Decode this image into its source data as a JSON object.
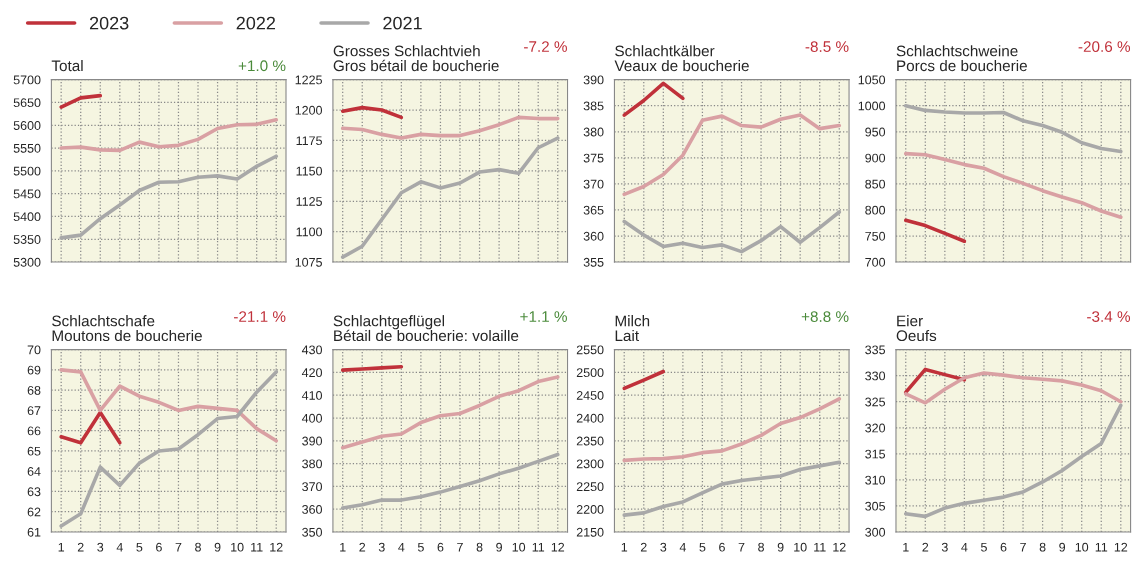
{
  "chart_data": [
    {
      "type": "line",
      "title": "Total",
      "annotations": [
        "+1.0 %"
      ],
      "categories": [
        "1",
        "2",
        "3",
        "4",
        "5",
        "6",
        "7",
        "8",
        "9",
        "10",
        "11",
        "12"
      ],
      "ylim": [
        5300,
        5700
      ],
      "yticks": [
        5300,
        5350,
        5400,
        5450,
        5500,
        5550,
        5600,
        5650,
        5700
      ],
      "tick_labels": "y",
      "grid": true,
      "legend": "top",
      "series": [
        {
          "name": "2023",
          "color": "#c0313a",
          "values": [
            5640,
            5660,
            5665,
            null,
            null,
            null,
            null,
            null,
            null,
            null,
            null,
            null
          ]
        },
        {
          "name": "2022",
          "color": "#d9a0a3",
          "values": [
            5550,
            5552,
            5546,
            5545,
            5563,
            5553,
            5556,
            5569,
            5593,
            5601,
            5602,
            5612
          ]
        },
        {
          "name": "2021",
          "color": "#a8a8a8",
          "values": [
            5353,
            5359,
            5395,
            5425,
            5457,
            5475,
            5476,
            5486,
            5489,
            5482,
            5510,
            5532
          ]
        }
      ]
    },
    {
      "type": "line",
      "title": "Grosses Schlachtvieh",
      "subtitle": "Gros bétail de boucherie",
      "annotations": [
        "-7.2 %"
      ],
      "categories": [
        "1",
        "2",
        "3",
        "4",
        "5",
        "6",
        "7",
        "8",
        "9",
        "10",
        "11",
        "12"
      ],
      "ylim": [
        1075,
        1225
      ],
      "yticks": [
        1075,
        1100,
        1125,
        1150,
        1175,
        1200,
        1225
      ],
      "tick_labels": "y",
      "grid": true,
      "series": [
        {
          "color": "#c0313a",
          "values": [
            1199,
            1202,
            1200,
            1194,
            null,
            null,
            null,
            null,
            null,
            null,
            null,
            null
          ]
        },
        {
          "color": "#d9a0a3",
          "values": [
            1185,
            1184,
            1180,
            1177,
            1180,
            1179,
            1179,
            1183,
            1188,
            1194,
            1193,
            1193
          ]
        },
        {
          "color": "#a8a8a8",
          "values": [
            1079,
            1088,
            1110,
            1132,
            1141,
            1136,
            1140,
            1149,
            1151,
            1148,
            1169,
            1177
          ]
        }
      ]
    },
    {
      "type": "line",
      "title": "Schlachtkälber",
      "subtitle": "Veaux de boucherie",
      "annotations": [
        "-8.5 %"
      ],
      "categories": [
        "1",
        "2",
        "3",
        "4",
        "5",
        "6",
        "7",
        "8",
        "9",
        "10",
        "11",
        "12"
      ],
      "ylim": [
        355,
        390
      ],
      "yticks": [
        355,
        360,
        365,
        370,
        375,
        380,
        385,
        390
      ],
      "tick_labels": "y",
      "grid": true,
      "series": [
        {
          "color": "#c0313a",
          "values": [
            383.2,
            386,
            389.3,
            386.4,
            null,
            null,
            null,
            null,
            null,
            null,
            null,
            null
          ]
        },
        {
          "color": "#d9a0a3",
          "values": [
            368,
            369.5,
            371.8,
            375.5,
            382.2,
            383,
            381.2,
            380.9,
            382.4,
            383.2,
            380.6,
            381.2
          ]
        },
        {
          "color": "#a8a8a8",
          "values": [
            362.8,
            360.2,
            358,
            358.6,
            357.8,
            358.3,
            357,
            359.1,
            361.8,
            358.8,
            361.6,
            364.6
          ]
        }
      ]
    },
    {
      "type": "line",
      "title": "Schlachtschweine",
      "subtitle": "Porcs de boucherie",
      "annotations": [
        "-20.6 %"
      ],
      "categories": [
        "1",
        "2",
        "3",
        "4",
        "5",
        "6",
        "7",
        "8",
        "9",
        "10",
        "11",
        "12"
      ],
      "ylim": [
        700,
        1050
      ],
      "yticks": [
        700,
        750,
        800,
        850,
        900,
        950,
        1000,
        1050
      ],
      "tick_labels": "y",
      "grid": true,
      "series": [
        {
          "color": "#c0313a",
          "values": [
            780,
            770,
            755,
            740,
            null,
            null,
            null,
            null,
            null,
            null,
            null,
            null
          ]
        },
        {
          "color": "#d9a0a3",
          "values": [
            908,
            906,
            897,
            887,
            880,
            864,
            851,
            837,
            825,
            814,
            798,
            786
          ]
        },
        {
          "color": "#a8a8a8",
          "values": [
            1000,
            991,
            988,
            986,
            986,
            987,
            971,
            962,
            949,
            929,
            918,
            912
          ]
        }
      ]
    },
    {
      "type": "line",
      "title": "Schlachtschafe",
      "subtitle": "Moutons de boucherie",
      "annotations": [
        "-21.1 %"
      ],
      "categories": [
        "1",
        "2",
        "3",
        "4",
        "5",
        "6",
        "7",
        "8",
        "9",
        "10",
        "11",
        "12"
      ],
      "ylim": [
        61,
        70
      ],
      "yticks": [
        61,
        62,
        63,
        64,
        65,
        66,
        67,
        68,
        69,
        70
      ],
      "grid": true,
      "series": [
        {
          "color": "#c0313a",
          "values": [
            65.7,
            65.4,
            66.9,
            65.4,
            null,
            null,
            null,
            null,
            null,
            null,
            null,
            null
          ]
        },
        {
          "color": "#d9a0a3",
          "values": [
            69.0,
            68.9,
            67.0,
            68.2,
            67.7,
            67.4,
            67.0,
            67.2,
            67.1,
            67.0,
            66.1,
            65.5
          ]
        },
        {
          "color": "#a8a8a8",
          "values": [
            61.3,
            61.9,
            64.2,
            63.3,
            64.4,
            65.0,
            65.1,
            65.8,
            66.6,
            66.7,
            67.9,
            68.9
          ]
        }
      ]
    },
    {
      "type": "line",
      "title": "Schlachtgeflügel",
      "subtitle": "Bétail de boucherie: volaille",
      "annotations": [
        "+1.1 %"
      ],
      "categories": [
        "1",
        "2",
        "3",
        "4",
        "5",
        "6",
        "7",
        "8",
        "9",
        "10",
        "11",
        "12"
      ],
      "ylim": [
        350,
        430
      ],
      "yticks": [
        350,
        360,
        370,
        380,
        390,
        400,
        410,
        420,
        430
      ],
      "grid": true,
      "series": [
        {
          "color": "#c0313a",
          "values": [
            421,
            421.5,
            422,
            422.5,
            null,
            null,
            null,
            null,
            null,
            null,
            null,
            null
          ]
        },
        {
          "color": "#d9a0a3",
          "values": [
            387,
            389.5,
            392,
            393,
            398,
            401,
            402,
            405.5,
            409.5,
            412,
            416,
            418
          ]
        },
        {
          "color": "#a8a8a8",
          "values": [
            360.5,
            362,
            364,
            364,
            365.5,
            367.5,
            370,
            372.5,
            375.5,
            378,
            381,
            384
          ]
        }
      ]
    },
    {
      "type": "line",
      "title": "Milch",
      "subtitle": "Lait",
      "annotations": [
        "+8.8 %"
      ],
      "categories": [
        "1",
        "2",
        "3",
        "4",
        "5",
        "6",
        "7",
        "8",
        "9",
        "10",
        "11",
        "12"
      ],
      "ylim": [
        2150,
        2550
      ],
      "yticks": [
        2150,
        2200,
        2250,
        2300,
        2350,
        2400,
        2450,
        2500,
        2550
      ],
      "grid": true,
      "series": [
        {
          "color": "#c0313a",
          "values": [
            2465,
            2483,
            2502,
            null,
            null,
            null,
            null,
            null,
            null,
            null,
            null,
            null
          ]
        },
        {
          "color": "#d9a0a3",
          "values": [
            2307,
            2310,
            2311,
            2315,
            2324,
            2328,
            2343,
            2362,
            2388,
            2401,
            2420,
            2442
          ]
        },
        {
          "color": "#a8a8a8",
          "values": [
            2187,
            2192,
            2206,
            2216,
            2236,
            2255,
            2263,
            2268,
            2273,
            2287,
            2295,
            2303
          ]
        }
      ]
    },
    {
      "type": "line",
      "title": "Eier",
      "subtitle": "Oeufs",
      "annotations": [
        "-3.4 %"
      ],
      "categories": [
        "1",
        "2",
        "3",
        "4",
        "5",
        "6",
        "7",
        "8",
        "9",
        "10",
        "11",
        "12"
      ],
      "ylim": [
        300,
        335
      ],
      "yticks": [
        300,
        305,
        310,
        315,
        320,
        325,
        330,
        335
      ],
      "grid": true,
      "series": [
        {
          "color": "#c0313a",
          "values": [
            326.8,
            331.2,
            330.2,
            329.2,
            null,
            null,
            null,
            null,
            null,
            null,
            null,
            null
          ]
        },
        {
          "color": "#d9a0a3",
          "values": [
            326.5,
            324.8,
            327.4,
            329.6,
            330.5,
            330.1,
            329.6,
            329.3,
            329,
            328.2,
            327.1,
            325
          ]
        },
        {
          "color": "#a8a8a8",
          "values": [
            303.5,
            303,
            304.6,
            305.5,
            306.1,
            306.7,
            307.7,
            309.6,
            311.8,
            314.5,
            317,
            324.3
          ]
        }
      ]
    }
  ]
}
